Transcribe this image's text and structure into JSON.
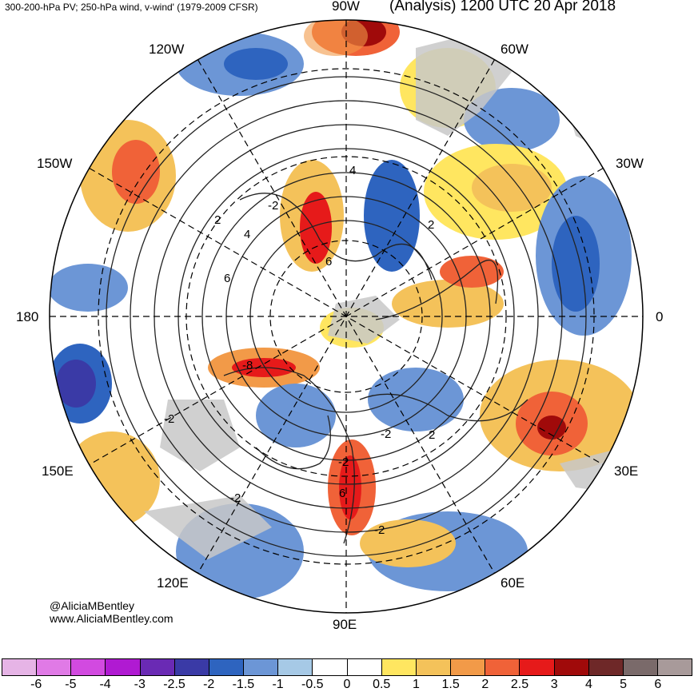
{
  "header": {
    "left_title": "300-200-hPa PV; 250-hPa wind, v-wind' (1979-2009 CFSR)",
    "right_title": "(Analysis) 1200 UTC 20 Apr 2018"
  },
  "map": {
    "projection": "north-polar-stereographic",
    "lon_labels": {
      "top": "90W",
      "bottom": "90E",
      "left": "180",
      "right": "0",
      "w120": "120W",
      "w60": "60W",
      "w150": "150W",
      "w30": "30W",
      "e150": "150E",
      "e30": "30E",
      "e120": "120E",
      "e60": "60E"
    },
    "contour_labels": [
      "4",
      "-2",
      "2",
      "4",
      "6",
      "6",
      "2",
      "-8",
      "-2",
      "2",
      "-2",
      "-2",
      "6",
      "-2",
      "-2"
    ],
    "land_color": "#c8c8c8",
    "gridline_style": "dashed"
  },
  "credits": {
    "handle": "@AliciaMBentley",
    "website": "www.AliciaMBentley.com"
  },
  "colorbar": {
    "colors": [
      "#e6b4e6",
      "#e07ae6",
      "#d24ae0",
      "#b01ad2",
      "#6a2ab4",
      "#3a3aa6",
      "#2e64bf",
      "#6c96d6",
      "#a6c9e6",
      "#ffffff",
      "#ffffff",
      "#ffe660",
      "#f4c25a",
      "#f29a48",
      "#f06238",
      "#e61a1a",
      "#a00a0a",
      "#6e2828",
      "#7a6a6a",
      "#a89a9a"
    ],
    "tick_labels": [
      "-6",
      "-5",
      "-4",
      "-3",
      "-2.5",
      "-2",
      "-1.5",
      "-1",
      "-0.5",
      "0",
      "0.5",
      "1",
      "1.5",
      "2",
      "2.5",
      "3",
      "4",
      "5",
      "6"
    ]
  }
}
